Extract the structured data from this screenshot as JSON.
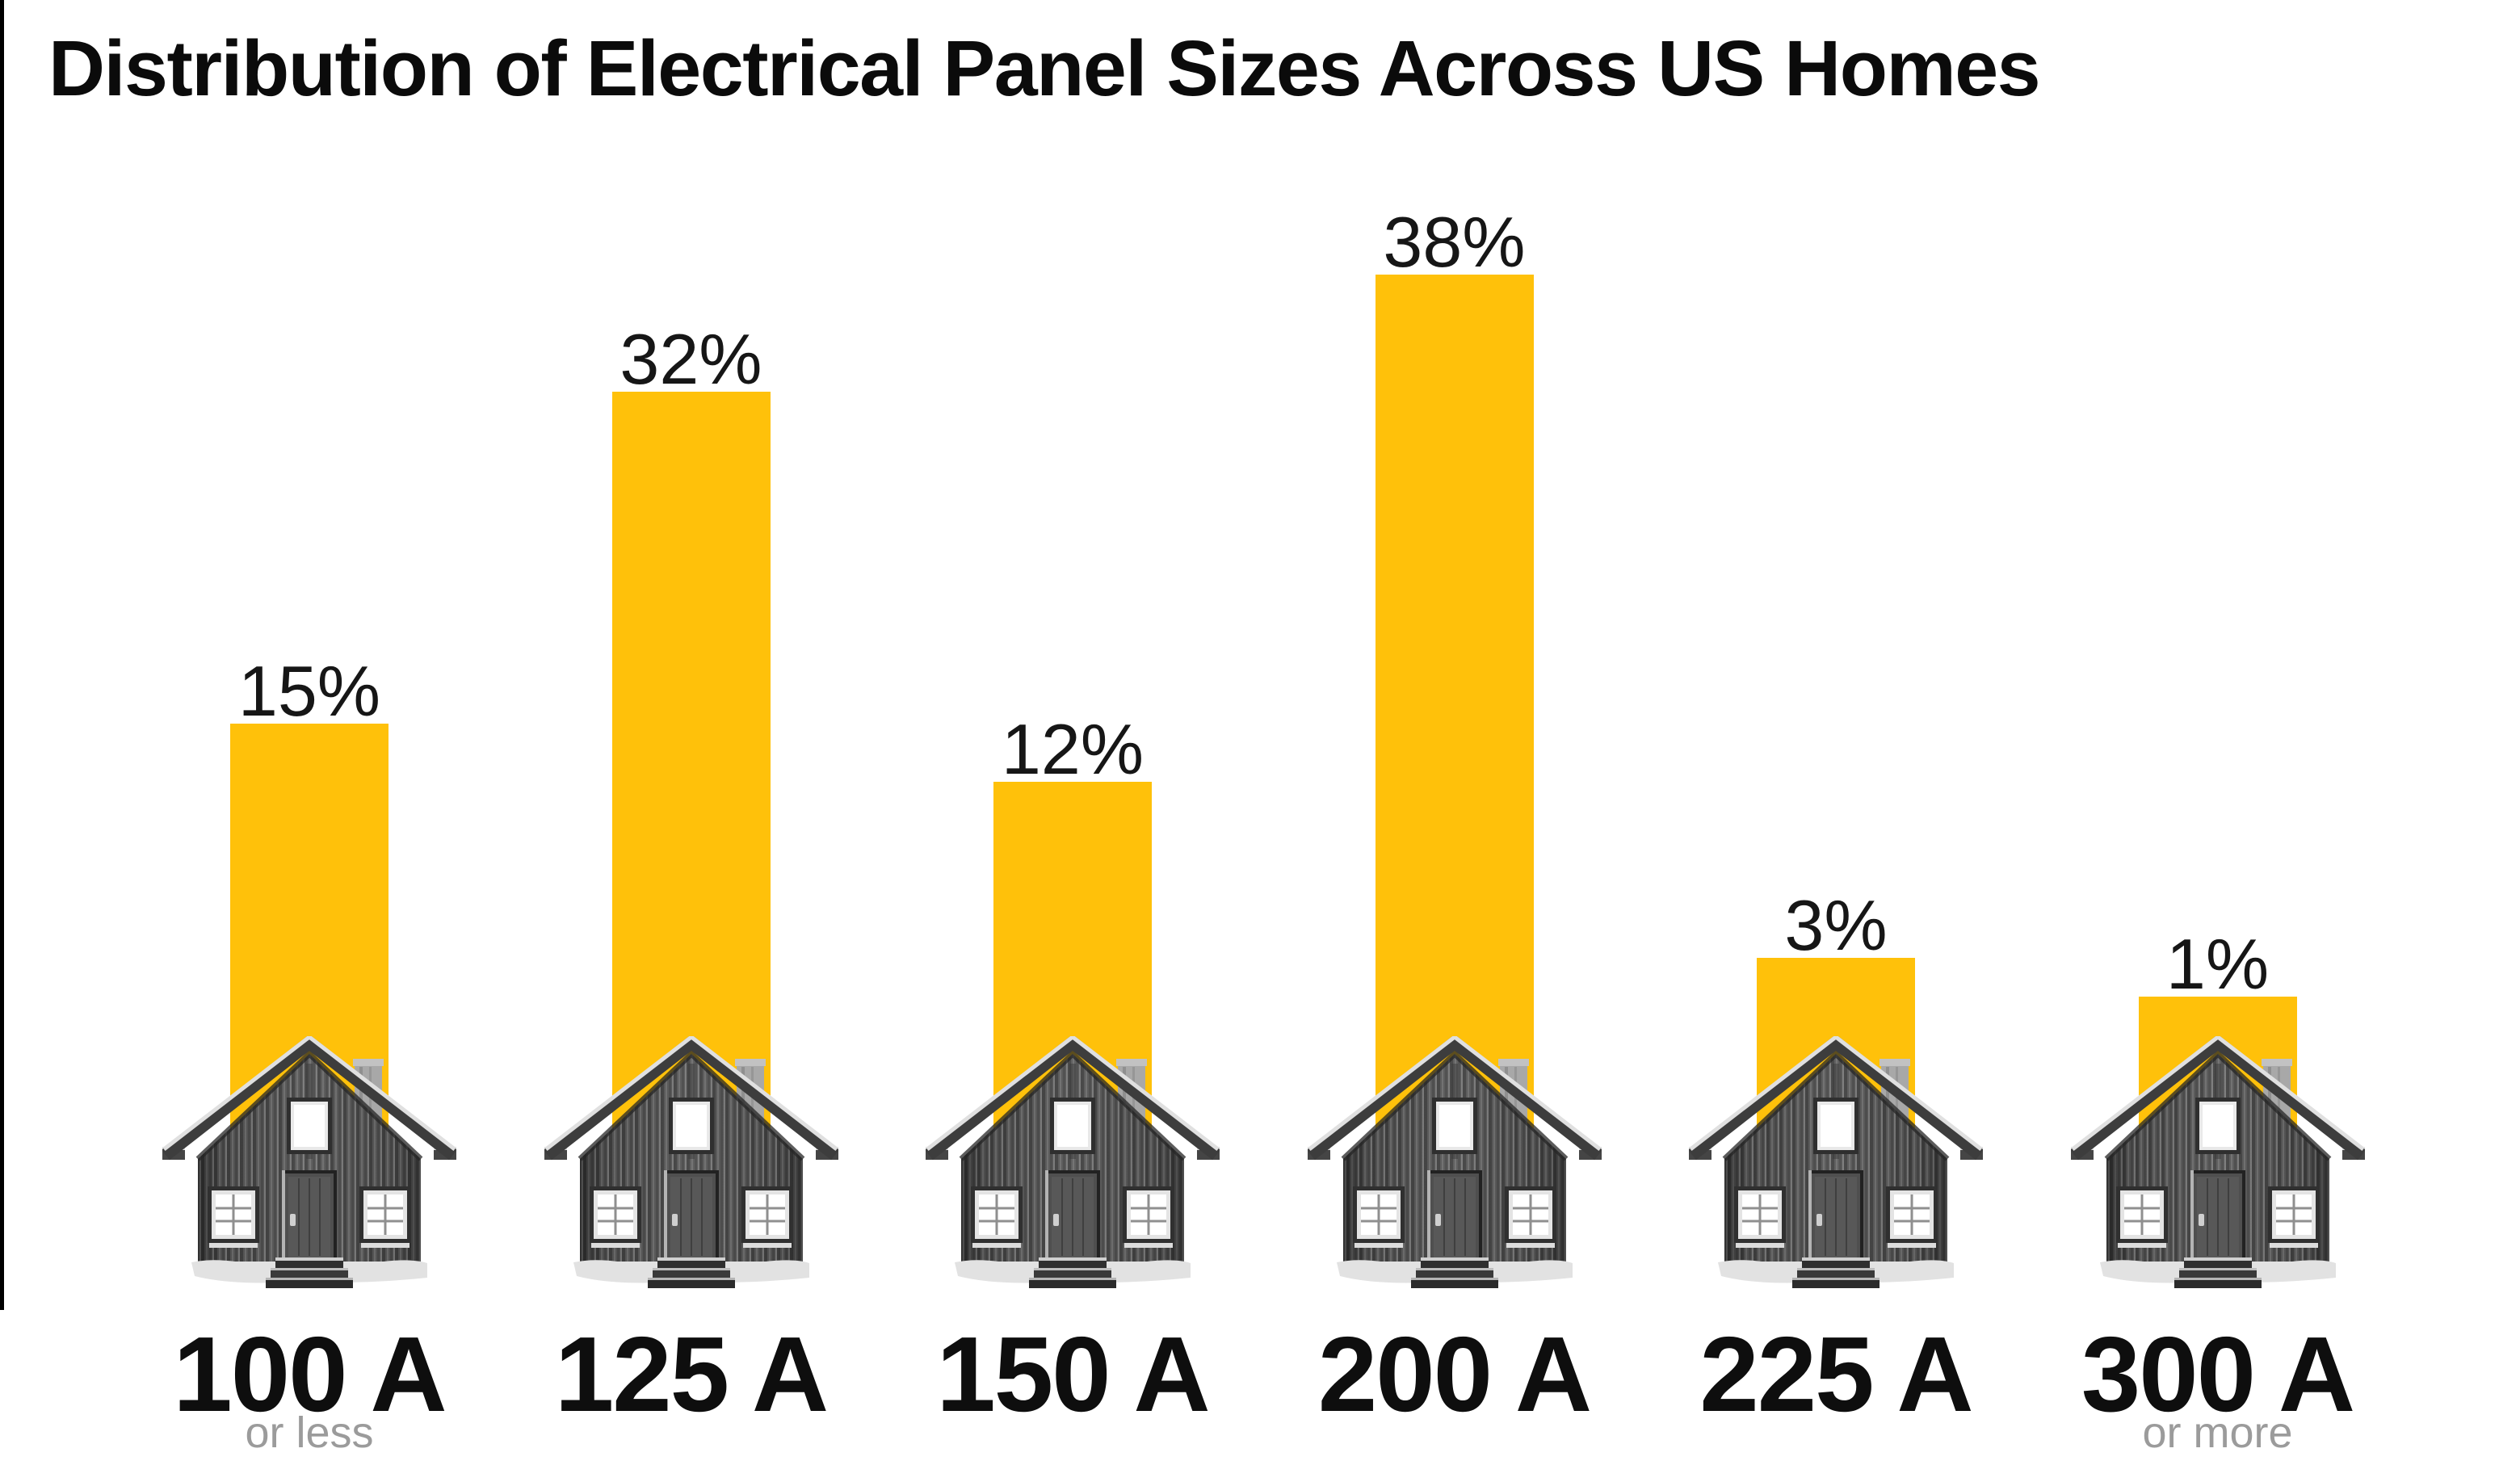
{
  "title": "Distribution of Electrical Panel Sizes Across US Homes",
  "colors": {
    "bar": "#FFC10A",
    "title_text": "#0B0B0B",
    "value_text": "#161616",
    "category_text": "#0E0E0E",
    "sublabel_text": "#9B9B9B",
    "edge_strip": "#000000",
    "background": "#FFFFFF"
  },
  "icons": {
    "house": "house-icon"
  },
  "chart_data": {
    "type": "bar",
    "title": "Distribution of Electrical Panel Sizes Across US Homes",
    "categories": [
      "100 A",
      "125 A",
      "150 A",
      "200 A",
      "225 A",
      "300 A"
    ],
    "category_sublabels": [
      "or less",
      "",
      "",
      "",
      "",
      "or more"
    ],
    "values": [
      15,
      32,
      12,
      38,
      3,
      1
    ],
    "value_labels": [
      "15%",
      "32%",
      "12%",
      "38%",
      "3%",
      "1%"
    ],
    "unit": "%",
    "ylim": [
      0,
      40
    ],
    "grid": false,
    "legend": false,
    "bar_color": "#FFC10A",
    "bar_icon": "grayscale wooden house photo at base of every bar",
    "value_label_position": "above-bar",
    "axis_labels_visible": false
  }
}
